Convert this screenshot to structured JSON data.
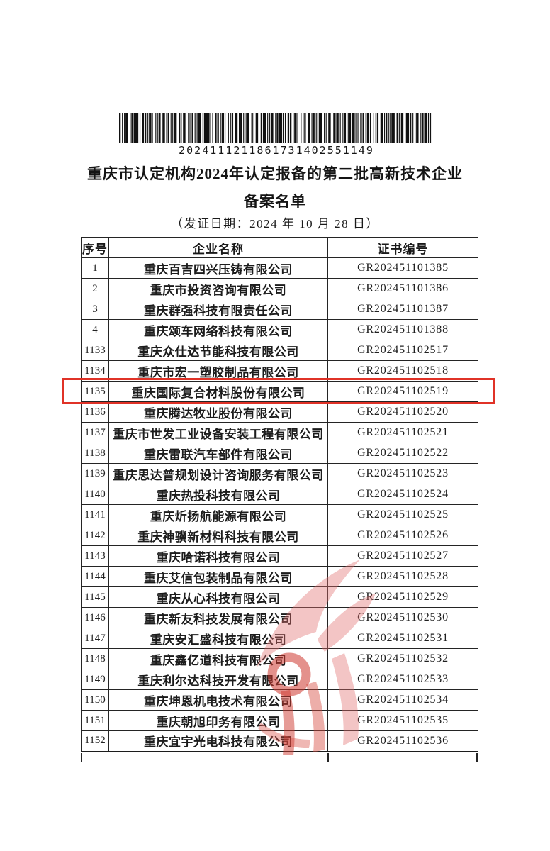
{
  "barcode": {
    "number": "2024111211861731402551149"
  },
  "header": {
    "title_line1": "重庆市认定机构2024年认定报备的第二批高新技术企业",
    "title_line2": "备案名单",
    "date_line": "（发证日期：2024 年 10 月 28 日）"
  },
  "table": {
    "columns": [
      "序号",
      "企业名称",
      "证书编号"
    ],
    "highlighted_no": "1135",
    "rows": [
      {
        "no": "1",
        "name": "重庆百吉四兴压铸有限公司",
        "cert": "GR202451101385"
      },
      {
        "no": "2",
        "name": "重庆市投资咨询有限公司",
        "cert": "GR202451101386"
      },
      {
        "no": "3",
        "name": "重庆群强科技有限责任公司",
        "cert": "GR202451101387"
      },
      {
        "no": "4",
        "name": "重庆颂车网络科技有限公司",
        "cert": "GR202451101388"
      },
      {
        "no": "1133",
        "name": "重庆众仕达节能科技有限公司",
        "cert": "GR202451102517"
      },
      {
        "no": "1134",
        "name": "重庆市宏一塑胶制品有限公司",
        "cert": "GR202451102518"
      },
      {
        "no": "1135",
        "name": "重庆国际复合材料股份有限公司",
        "cert": "GR202451102519"
      },
      {
        "no": "1136",
        "name": "重庆腾达牧业股份有限公司",
        "cert": "GR202451102520"
      },
      {
        "no": "1137",
        "name": "重庆市世发工业设备安装工程有限公司",
        "cert": "GR202451102521"
      },
      {
        "no": "1138",
        "name": "重庆雷联汽车部件有限公司",
        "cert": "GR202451102522"
      },
      {
        "no": "1139",
        "name": "重庆思达普规划设计咨询服务有限公司",
        "cert": "GR202451102523"
      },
      {
        "no": "1140",
        "name": "重庆热投科技有限公司",
        "cert": "GR202451102524"
      },
      {
        "no": "1141",
        "name": "重庆炘扬航能源有限公司",
        "cert": "GR202451102525"
      },
      {
        "no": "1142",
        "name": "重庆神骥新材料科技有限公司",
        "cert": "GR202451102526"
      },
      {
        "no": "1143",
        "name": "重庆哈诺科技有限公司",
        "cert": "GR202451102527"
      },
      {
        "no": "1144",
        "name": "重庆艾信包装制品有限公司",
        "cert": "GR202451102528"
      },
      {
        "no": "1145",
        "name": "重庆从心科技有限公司",
        "cert": "GR202451102529"
      },
      {
        "no": "1146",
        "name": "重庆新友科技发展有限公司",
        "cert": "GR202451102530"
      },
      {
        "no": "1147",
        "name": "重庆安汇盛科技有限公司",
        "cert": "GR202451102531"
      },
      {
        "no": "1148",
        "name": "重庆鑫亿道科技有限公司",
        "cert": "GR202451102532"
      },
      {
        "no": "1149",
        "name": "重庆利尔达科技开发有限公司",
        "cert": "GR202451102533"
      },
      {
        "no": "1150",
        "name": "重庆坤恩机电技术有限公司",
        "cert": "GR202451102534"
      },
      {
        "no": "1151",
        "name": "重庆朝旭印务有限公司",
        "cert": "GR202451102535"
      },
      {
        "no": "1152",
        "name": "重庆宜宇光电科技有限公司",
        "cert": "GR202451102536"
      }
    ]
  },
  "highlight": {
    "border_color": "#e03227"
  },
  "watermark": {
    "icon": "red-flame-emblem",
    "color_light": "#e26e6e",
    "color_dark": "#cd372d"
  }
}
